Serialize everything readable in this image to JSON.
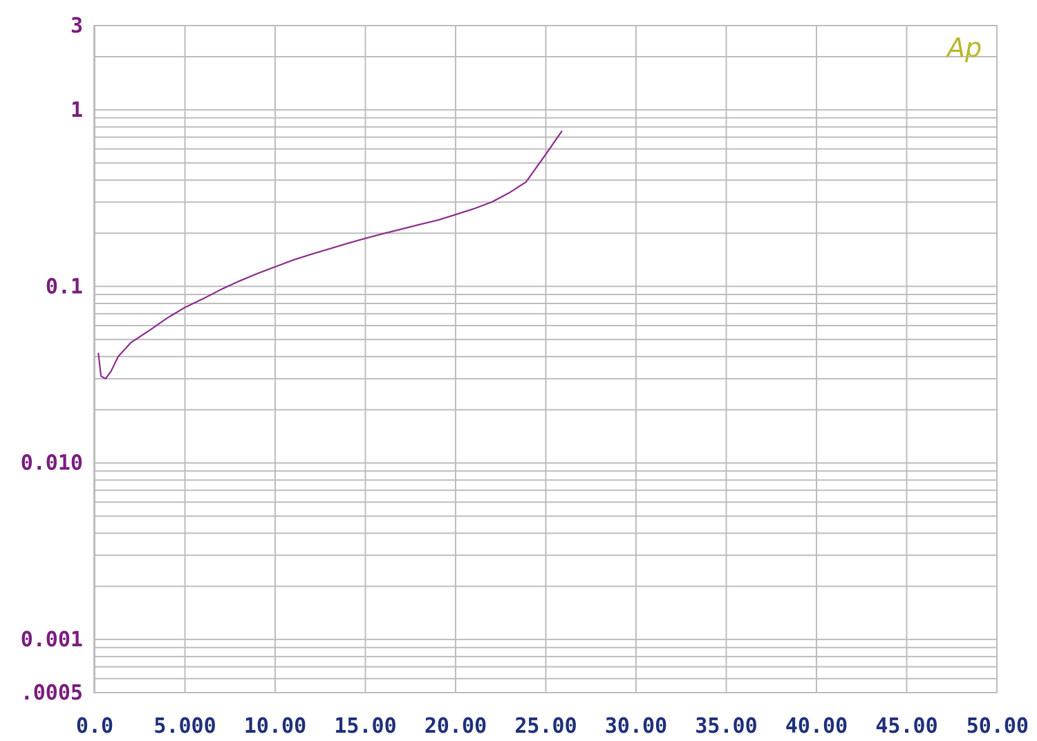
{
  "chart_data": {
    "type": "line",
    "title": "",
    "xlabel": "",
    "ylabel": "",
    "xlim": [
      0,
      50
    ],
    "ylim": [
      0.0005,
      3
    ],
    "y_scale": "log",
    "grid": true,
    "logo_text": "Ap",
    "x_tick_labels": [
      {
        "value": 0,
        "label": "0.0"
      },
      {
        "value": 5,
        "label": "5.000"
      },
      {
        "value": 10,
        "label": "10.00"
      },
      {
        "value": 15,
        "label": "15.00"
      },
      {
        "value": 20,
        "label": "20.00"
      },
      {
        "value": 25,
        "label": "25.00"
      },
      {
        "value": 30,
        "label": "30.00"
      },
      {
        "value": 35,
        "label": "35.00"
      },
      {
        "value": 40,
        "label": "40.00"
      },
      {
        "value": 45,
        "label": "45.00"
      },
      {
        "value": 50,
        "label": "50.00"
      }
    ],
    "y_tick_labels": [
      {
        "value": 3,
        "label": "3"
      },
      {
        "value": 1,
        "label": "1"
      },
      {
        "value": 0.1,
        "label": "0.1"
      },
      {
        "value": 0.01,
        "label": "0.010"
      },
      {
        "value": 0.001,
        "label": "0.001"
      },
      {
        "value": 0.0005,
        "label": ".0005"
      }
    ],
    "colors": {
      "series": "#8b2d8e",
      "y_ticks": "#7a1c7e",
      "x_ticks": "#1f2f7a",
      "grid": "#bdbdbd",
      "logo": "#b8b82a"
    },
    "series": [
      {
        "x": [
          0.2,
          0.35,
          0.6,
          0.9,
          1.3,
          2.0,
          3.0,
          4.0,
          5.0,
          6.0,
          7.0,
          8.0,
          9.0,
          10.0,
          11.0,
          12.0,
          13.0,
          14.0,
          15.0,
          16.0,
          17.0,
          18.0,
          19.0,
          20.0,
          21.0,
          22.0,
          23.0,
          23.9,
          25.0,
          25.9
        ],
        "y": [
          0.042,
          0.031,
          0.03,
          0.033,
          0.04,
          0.048,
          0.056,
          0.066,
          0.076,
          0.085,
          0.096,
          0.107,
          0.118,
          0.129,
          0.141,
          0.152,
          0.163,
          0.175,
          0.187,
          0.199,
          0.211,
          0.224,
          0.237,
          0.255,
          0.275,
          0.3,
          0.34,
          0.39,
          0.56,
          0.76
        ]
      }
    ]
  }
}
